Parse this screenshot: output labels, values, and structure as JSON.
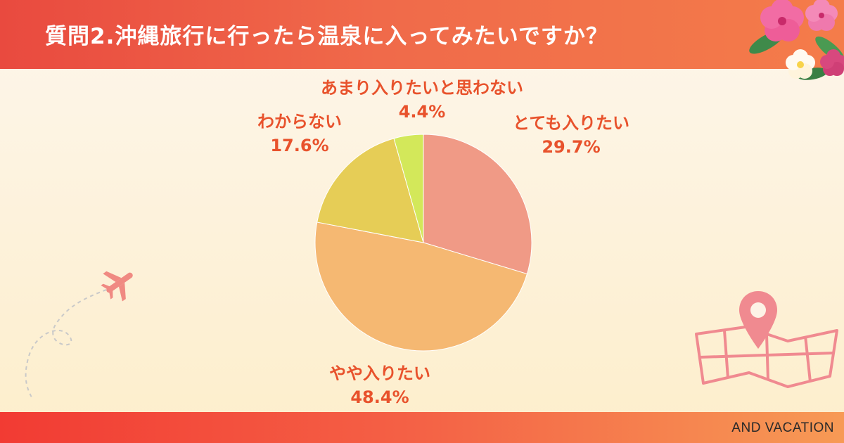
{
  "title": "質問2.沖縄旅行に行ったら温泉に入ってみたいですか？",
  "brand": "AND VACATION",
  "colors": {
    "header": "#ef5b42",
    "label_text": "#e8522c"
  },
  "chart_data": {
    "type": "pie",
    "title": "質問2.沖縄旅行に行ったら温泉に入ってみたいですか？",
    "slices": [
      {
        "label": "とても入りたい",
        "value": 29.7,
        "display": "29.7%",
        "color": "#f09a86"
      },
      {
        "label": "やや入りたい",
        "value": 48.4,
        "display": "48.4%",
        "color": "#f5b872"
      },
      {
        "label": "わからない",
        "value": 17.6,
        "display": "17.6%",
        "color": "#e6cd56"
      },
      {
        "label": "あまり入りたいと思わない",
        "value": 4.4,
        "display": "4.4%",
        "color": "#d3e85a"
      }
    ],
    "start_angle": "12 o'clock",
    "direction": "clockwise"
  },
  "decorations": [
    "hibiscus-flower-icon",
    "airplane-icon",
    "map-pin-icon",
    "map-icon"
  ]
}
